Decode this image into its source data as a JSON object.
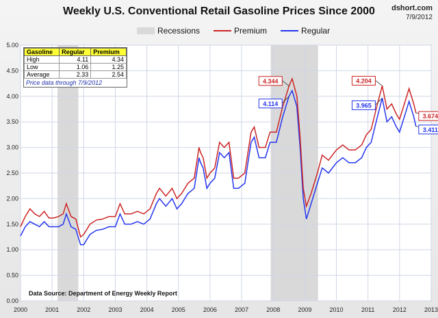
{
  "header": {
    "title": "Weekly U.S. Conventional Retail Gasoline Prices Since 2000",
    "site": "dshort.com",
    "date": "7/9/2012"
  },
  "legend": {
    "recessions": "Recessions",
    "premium": "Premium",
    "regular": "Regular"
  },
  "colors": {
    "premium": "#cc2222",
    "regular": "#2233ee",
    "recession": "#d9d9d9",
    "grid": "#cfd6e6"
  },
  "stats": {
    "headers": [
      "Gasoline",
      "Regular",
      "Premium"
    ],
    "rows": [
      {
        "label": "High",
        "regular": "4.11",
        "premium": "4.34"
      },
      {
        "label": "Low",
        "regular": "1.06",
        "premium": "1.25"
      },
      {
        "label": "Average",
        "regular": "2.33",
        "premium": "2.54"
      }
    ],
    "note": "Price data through 7/9/2012"
  },
  "source": "Data Source: Department of Energy Weekly Report",
  "chart_data": {
    "type": "line",
    "title": "Weekly U.S. Conventional Retail Gasoline Prices Since 2000",
    "xlabel": "",
    "ylabel": "",
    "xlim": [
      2000,
      2013
    ],
    "ylim": [
      0,
      5
    ],
    "x_ticks": [
      "2000",
      "2001",
      "2002",
      "2003",
      "2004",
      "2005",
      "2006",
      "2007",
      "2008",
      "2009",
      "2010",
      "2011",
      "2012",
      "2013"
    ],
    "y_ticks": [
      "0.00",
      "0.50",
      "1.00",
      "1.50",
      "2.00",
      "2.50",
      "3.00",
      "3.50",
      "4.00",
      "4.50",
      "5.00"
    ],
    "recessions": [
      [
        2001.17,
        2001.83
      ],
      [
        2007.92,
        2009.42
      ]
    ],
    "series": [
      {
        "name": "Regular",
        "x": [
          2000.0,
          2000.15,
          2000.3,
          2000.45,
          2000.6,
          2000.75,
          2000.9,
          2001.05,
          2001.2,
          2001.35,
          2001.45,
          2001.6,
          2001.75,
          2001.9,
          2002.0,
          2002.2,
          2002.4,
          2002.6,
          2002.8,
          2003.0,
          2003.15,
          2003.3,
          2003.5,
          2003.7,
          2003.9,
          2004.1,
          2004.3,
          2004.4,
          2004.6,
          2004.8,
          2004.95,
          2005.1,
          2005.3,
          2005.5,
          2005.65,
          2005.7,
          2005.78,
          2005.9,
          2006.0,
          2006.15,
          2006.3,
          2006.45,
          2006.6,
          2006.75,
          2006.9,
          2007.1,
          2007.3,
          2007.4,
          2007.55,
          2007.75,
          2007.9,
          2008.1,
          2008.3,
          2008.5,
          2008.6,
          2008.75,
          2008.85,
          2008.95,
          2009.05,
          2009.2,
          2009.4,
          2009.55,
          2009.75,
          2010.0,
          2010.2,
          2010.4,
          2010.6,
          2010.8,
          2010.95,
          2011.1,
          2011.3,
          2011.45,
          2011.6,
          2011.75,
          2011.9,
          2012.0,
          2012.15,
          2012.3,
          2012.45,
          2012.52
        ],
        "values": [
          1.27,
          1.45,
          1.55,
          1.5,
          1.45,
          1.55,
          1.45,
          1.45,
          1.45,
          1.5,
          1.7,
          1.45,
          1.4,
          1.1,
          1.1,
          1.3,
          1.38,
          1.4,
          1.45,
          1.45,
          1.7,
          1.5,
          1.5,
          1.55,
          1.5,
          1.6,
          1.9,
          2.0,
          1.85,
          2.0,
          1.8,
          1.9,
          2.1,
          2.2,
          2.8,
          2.7,
          2.6,
          2.2,
          2.3,
          2.4,
          2.9,
          2.8,
          2.9,
          2.2,
          2.2,
          2.3,
          3.1,
          3.2,
          2.8,
          2.8,
          3.1,
          3.1,
          3.6,
          4.0,
          4.11,
          3.8,
          3.0,
          2.0,
          1.6,
          1.9,
          2.3,
          2.6,
          2.5,
          2.7,
          2.8,
          2.7,
          2.7,
          2.8,
          3.0,
          3.1,
          3.6,
          3.965,
          3.5,
          3.6,
          3.4,
          3.3,
          3.6,
          3.9,
          3.6,
          3.411
        ]
      },
      {
        "name": "Premium",
        "x": [
          2000.0,
          2000.15,
          2000.3,
          2000.45,
          2000.6,
          2000.75,
          2000.9,
          2001.05,
          2001.2,
          2001.35,
          2001.45,
          2001.6,
          2001.75,
          2001.9,
          2002.0,
          2002.2,
          2002.4,
          2002.6,
          2002.8,
          2003.0,
          2003.15,
          2003.3,
          2003.5,
          2003.7,
          2003.9,
          2004.1,
          2004.3,
          2004.4,
          2004.6,
          2004.8,
          2004.95,
          2005.1,
          2005.3,
          2005.5,
          2005.65,
          2005.7,
          2005.78,
          2005.9,
          2006.0,
          2006.15,
          2006.3,
          2006.45,
          2006.6,
          2006.75,
          2006.9,
          2007.1,
          2007.3,
          2007.4,
          2007.55,
          2007.75,
          2007.9,
          2008.1,
          2008.3,
          2008.5,
          2008.6,
          2008.75,
          2008.85,
          2008.95,
          2009.05,
          2009.2,
          2009.4,
          2009.55,
          2009.75,
          2010.0,
          2010.2,
          2010.4,
          2010.6,
          2010.8,
          2010.95,
          2011.1,
          2011.3,
          2011.45,
          2011.6,
          2011.75,
          2011.9,
          2012.0,
          2012.15,
          2012.3,
          2012.45,
          2012.52
        ],
        "values": [
          1.45,
          1.65,
          1.8,
          1.7,
          1.65,
          1.75,
          1.62,
          1.62,
          1.65,
          1.7,
          1.9,
          1.65,
          1.6,
          1.25,
          1.3,
          1.5,
          1.58,
          1.6,
          1.65,
          1.65,
          1.9,
          1.7,
          1.7,
          1.75,
          1.7,
          1.8,
          2.1,
          2.2,
          2.05,
          2.2,
          2.0,
          2.1,
          2.3,
          2.4,
          3.0,
          2.9,
          2.8,
          2.4,
          2.5,
          2.6,
          3.1,
          3.0,
          3.1,
          2.4,
          2.4,
          2.5,
          3.3,
          3.4,
          3.0,
          3.0,
          3.3,
          3.3,
          3.8,
          4.2,
          4.344,
          4.0,
          3.2,
          2.2,
          1.85,
          2.1,
          2.5,
          2.85,
          2.75,
          2.95,
          3.05,
          2.95,
          2.95,
          3.05,
          3.25,
          3.35,
          3.85,
          4.204,
          3.75,
          3.85,
          3.65,
          3.55,
          3.85,
          4.15,
          3.85,
          3.674
        ]
      }
    ],
    "annotations": [
      {
        "series": "Premium",
        "x": 2008.55,
        "value": "4.344"
      },
      {
        "series": "Regular",
        "x": 2008.55,
        "value": "4.114"
      },
      {
        "series": "Premium",
        "x": 2011.45,
        "value": "4.204"
      },
      {
        "series": "Regular",
        "x": 2011.45,
        "value": "3.965"
      },
      {
        "series": "Premium",
        "x": 2012.52,
        "value": "3.674"
      },
      {
        "series": "Regular",
        "x": 2012.52,
        "value": "3.411"
      }
    ]
  }
}
